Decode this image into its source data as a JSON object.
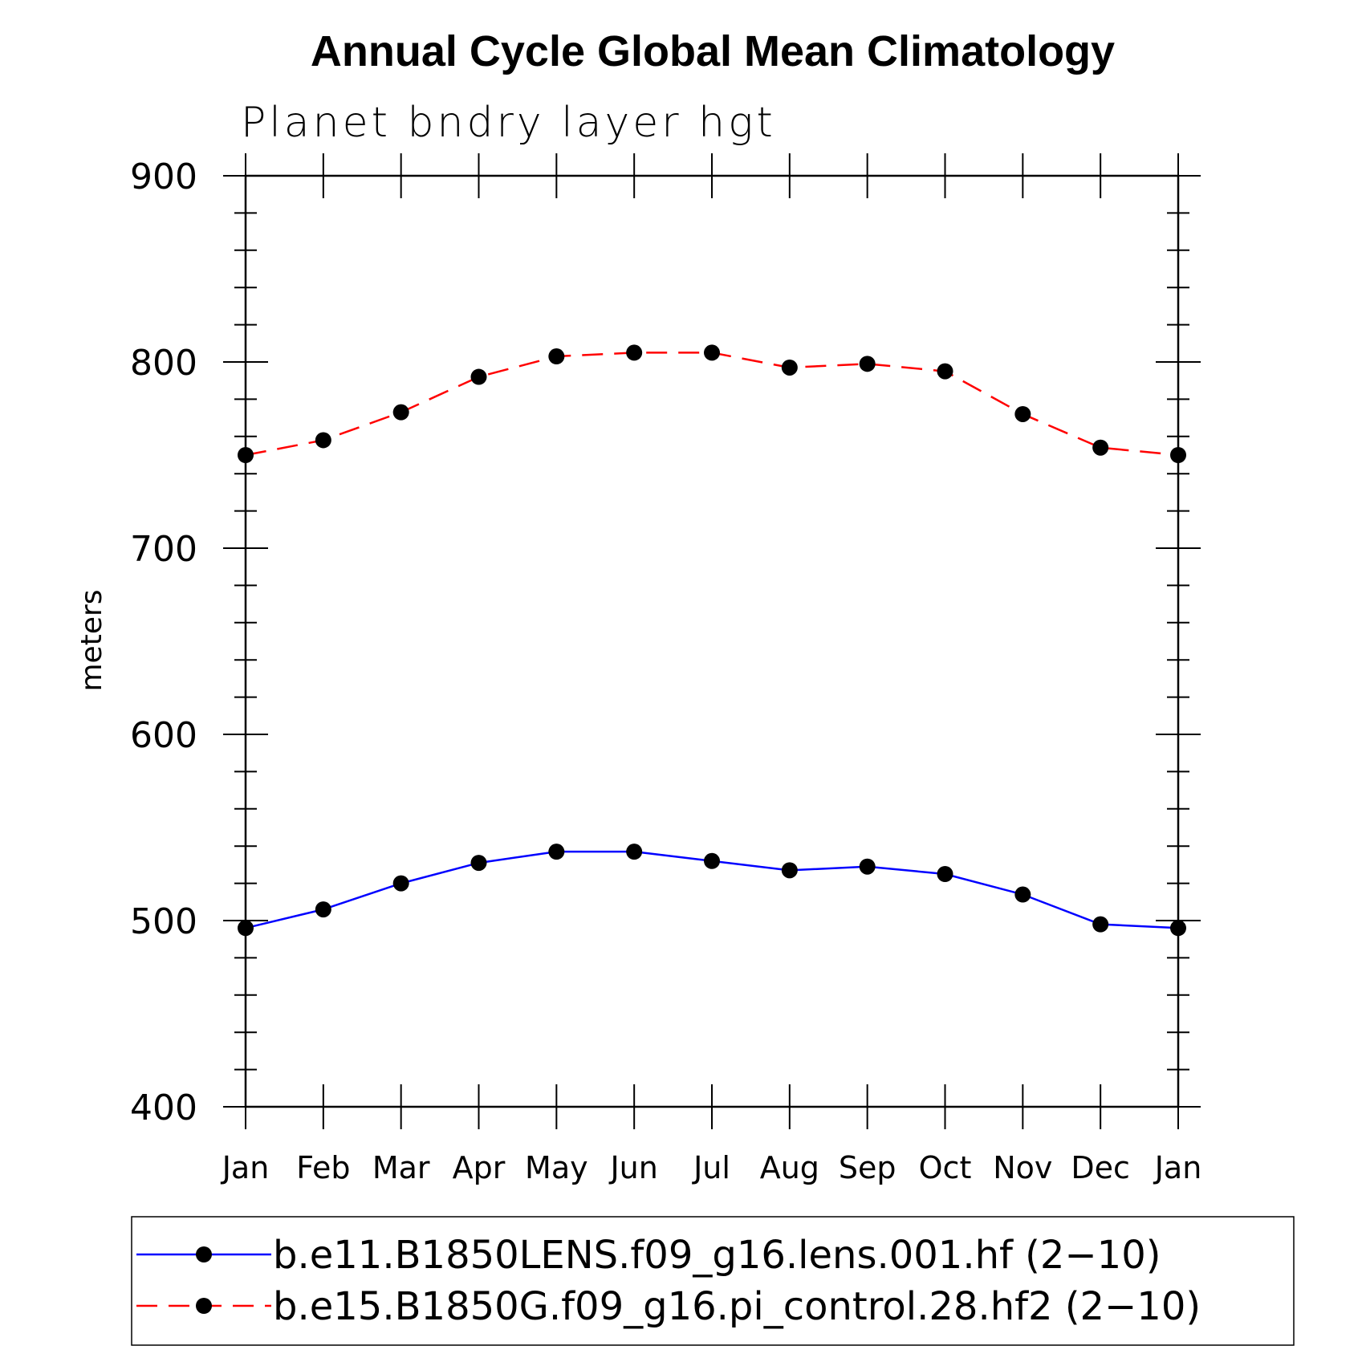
{
  "chart_data": {
    "type": "line",
    "title": "Annual Cycle Global Mean Climatology",
    "subtitle": "Planet bndry layer hgt",
    "ylabel": "meters",
    "xlabel": "",
    "ylim": [
      400,
      900
    ],
    "yticks": [
      400,
      500,
      600,
      700,
      800,
      900
    ],
    "categories": [
      "Jan",
      "Feb",
      "Mar",
      "Apr",
      "May",
      "Jun",
      "Jul",
      "Aug",
      "Sep",
      "Oct",
      "Nov",
      "Dec",
      "Jan"
    ],
    "series": [
      {
        "name": "b.e11.B1850LENS.f09_g16.lens.001.hf (2−10)",
        "color": "#0000ff",
        "dash": "solid",
        "marker": "filled-circle",
        "values": [
          496,
          506,
          520,
          531,
          537,
          537,
          532,
          527,
          529,
          525,
          514,
          498,
          496
        ]
      },
      {
        "name": "b.e15.B1850G.f09_g16.pi_control.28.hf2 (2−10)",
        "color": "#ff0000",
        "dash": "dashed",
        "marker": "filled-circle",
        "values": [
          750,
          758,
          773,
          792,
          803,
          805,
          805,
          797,
          799,
          795,
          772,
          754,
          750
        ]
      }
    ],
    "legend": {
      "position": "bottom"
    }
  }
}
